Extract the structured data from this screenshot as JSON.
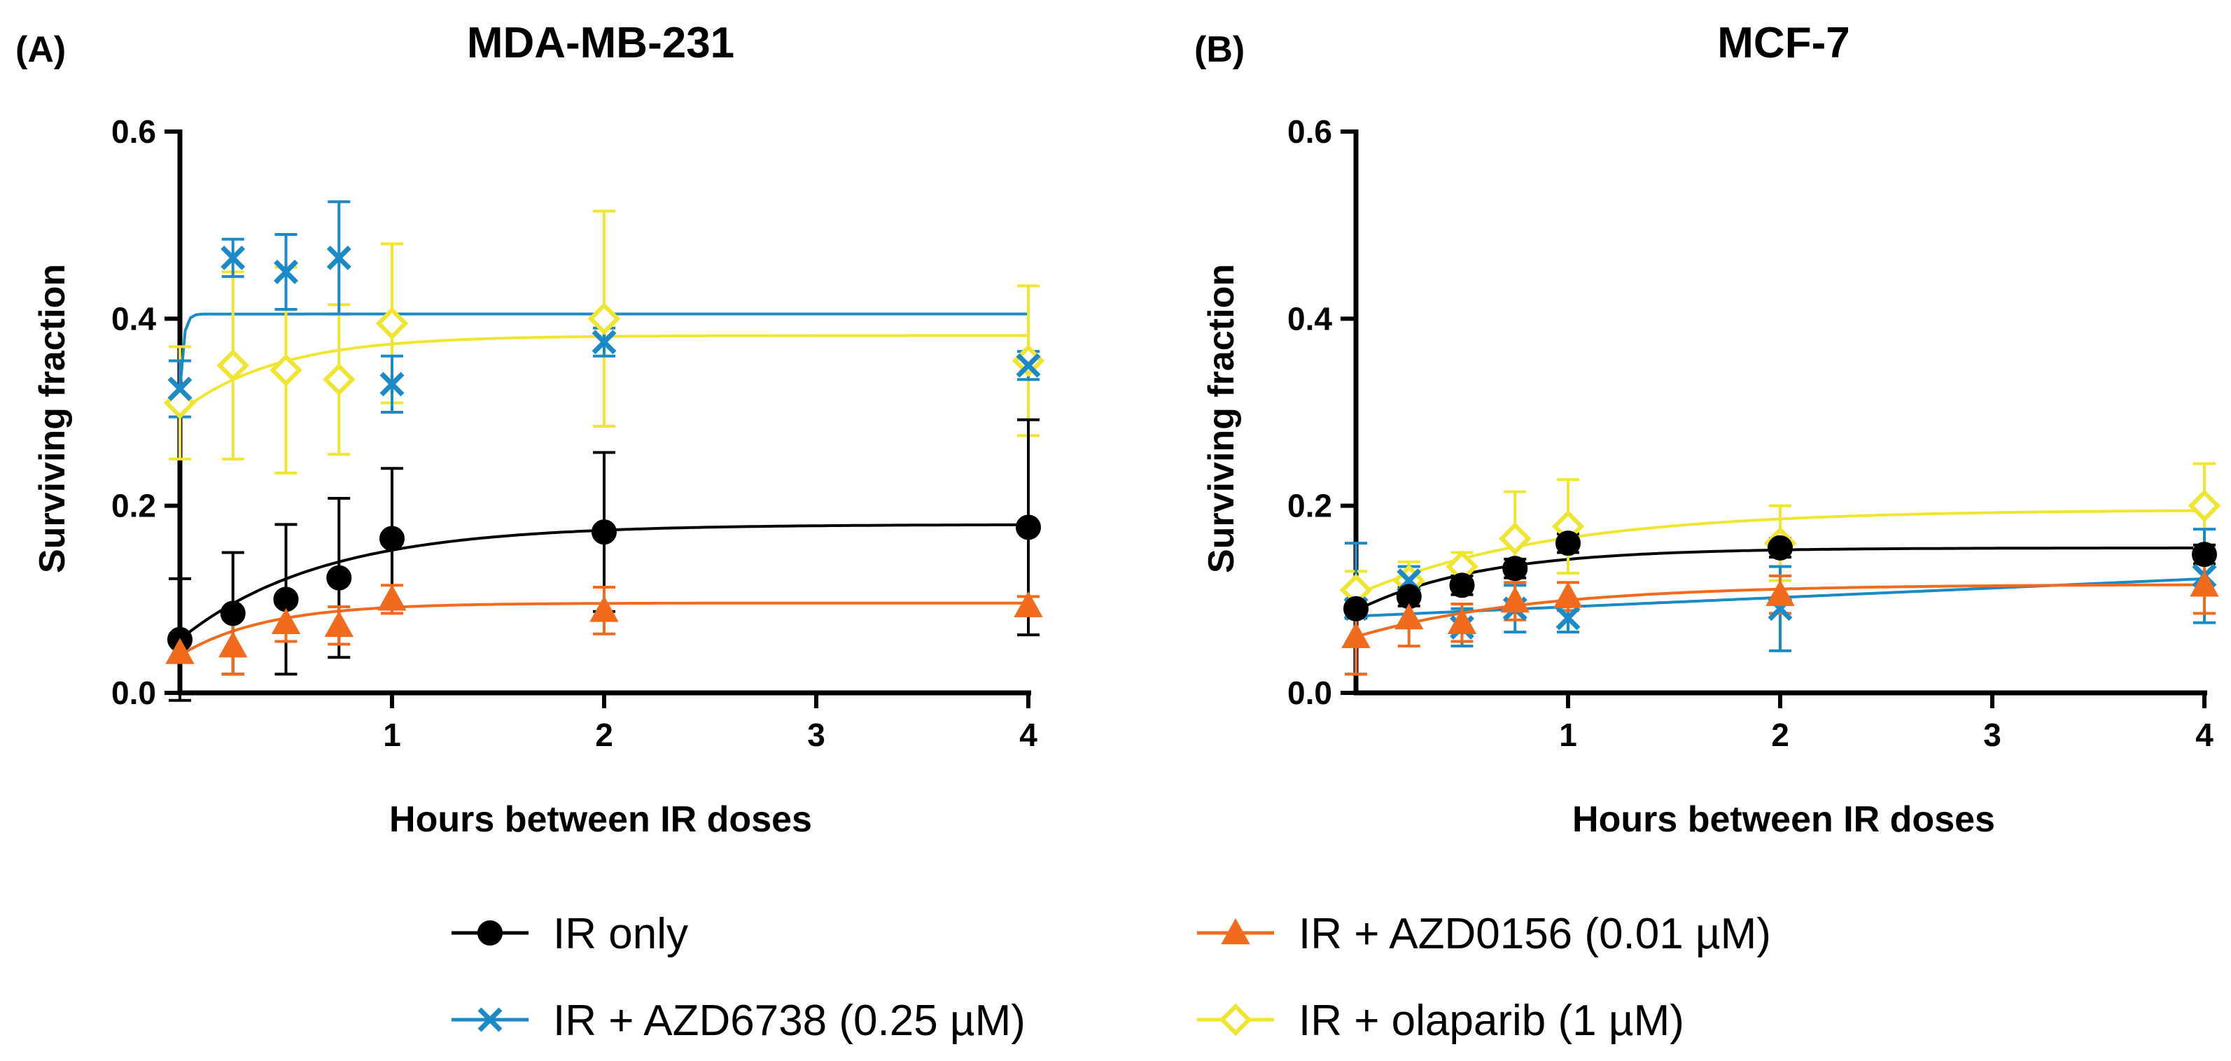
{
  "chart_data": [
    {
      "panel_label": "(A)",
      "title": "MDA-MB-231",
      "type": "scatter",
      "xlabel": "Hours between IR doses",
      "ylabel": "Surviving fraction",
      "ylim": [
        0,
        0.6
      ],
      "xlim": [
        0,
        4
      ],
      "x_tick_labels": [
        {
          "value": 1,
          "label": "1"
        },
        {
          "value": 2,
          "label": "2"
        },
        {
          "value": 3,
          "label": "3"
        },
        {
          "value": 4,
          "label": "4"
        }
      ],
      "y_tick_labels": [
        {
          "value": 0,
          "label": "0.0"
        },
        {
          "value": 0.2,
          "label": "0.2"
        },
        {
          "value": 0.4,
          "label": "0.4"
        },
        {
          "value": 0.6,
          "label": "0.6"
        }
      ],
      "series": [
        {
          "name": "IR + olaparib (1 µM)",
          "color": "#F2E530",
          "marker": "diamond",
          "x": [
            0,
            0.25,
            0.5,
            0.75,
            1,
            2,
            4
          ],
          "y": [
            0.31,
            0.35,
            0.345,
            0.335,
            0.395,
            0.4,
            0.355
          ],
          "err": [
            0.06,
            0.1,
            0.11,
            0.08,
            0.085,
            0.115,
            0.08
          ],
          "fit": {
            "plateau": 0.382,
            "y0": 0.3,
            "k": 2.2
          }
        },
        {
          "name": "IR + AZD6738 (0.25 µM)",
          "color": "#1A8BC6",
          "marker": "x",
          "x": [
            0,
            0.25,
            0.5,
            0.75,
            1,
            2,
            4
          ],
          "y": [
            0.325,
            0.465,
            0.45,
            0.465,
            0.33,
            0.375,
            0.35
          ],
          "err": [
            0.03,
            0.02,
            0.04,
            0.06,
            0.03,
            0.015,
            0.015
          ],
          "fit": {
            "plateau": 0.405,
            "y0": 0.325,
            "k": 60
          }
        },
        {
          "name": "IR only",
          "color": "#000000",
          "marker": "circle",
          "x": [
            0,
            0.25,
            0.5,
            0.75,
            1,
            2,
            4
          ],
          "y": [
            0.057,
            0.085,
            0.1,
            0.123,
            0.165,
            0.172,
            0.177
          ],
          "err": [
            0.065,
            0.065,
            0.08,
            0.085,
            0.075,
            0.085,
            0.115
          ],
          "fit": {
            "plateau": 0.18,
            "y0": 0.057,
            "k": 1.5
          }
        },
        {
          "name": "IR + AZD0156 (0.01 µM)",
          "color": "#F26B1D",
          "marker": "triangle",
          "x": [
            0,
            0.25,
            0.5,
            0.75,
            1,
            2,
            4
          ],
          "y": [
            0.043,
            0.05,
            0.075,
            0.072,
            0.1,
            0.088,
            0.093
          ],
          "err": [
            0.01,
            0.03,
            0.02,
            0.02,
            0.015,
            0.025,
            0.01
          ],
          "fit": {
            "plateau": 0.096,
            "y0": 0.04,
            "k": 2.5
          }
        }
      ]
    },
    {
      "panel_label": "(B)",
      "title": "MCF-7",
      "type": "scatter",
      "xlabel": "Hours between IR doses",
      "ylabel": "Surviving fraction",
      "ylim": [
        0,
        0.6
      ],
      "xlim": [
        0,
        4
      ],
      "x_tick_labels": [
        {
          "value": 1,
          "label": "1"
        },
        {
          "value": 2,
          "label": "2"
        },
        {
          "value": 3,
          "label": "3"
        },
        {
          "value": 4,
          "label": "4"
        }
      ],
      "y_tick_labels": [
        {
          "value": 0,
          "label": "0.0"
        },
        {
          "value": 0.2,
          "label": "0.2"
        },
        {
          "value": 0.4,
          "label": "0.4"
        },
        {
          "value": 0.6,
          "label": "0.6"
        }
      ],
      "series": [
        {
          "name": "IR + olaparib (1 µM)",
          "color": "#F2E530",
          "marker": "diamond",
          "x": [
            0,
            0.25,
            0.5,
            0.75,
            1,
            2,
            4
          ],
          "y": [
            0.11,
            0.12,
            0.135,
            0.165,
            0.178,
            0.16,
            0.2
          ],
          "err": [
            0.02,
            0.02,
            0.015,
            0.05,
            0.05,
            0.04,
            0.045
          ],
          "fit": {
            "plateau": 0.196,
            "y0": 0.105,
            "k": 1.1
          }
        },
        {
          "name": "IR + AZD6738 (0.25 µM)",
          "color": "#1A8BC6",
          "marker": "x",
          "x": [
            0,
            0.25,
            0.5,
            0.75,
            1,
            2,
            4
          ],
          "y": [
            0.09,
            0.12,
            0.07,
            0.09,
            0.08,
            0.09,
            0.125
          ],
          "err": [
            0.07,
            0.015,
            0.02,
            0.025,
            0.015,
            0.045,
            0.05
          ],
          "fit": {
            "linear": true,
            "y0": 0.082,
            "slope": 0.01
          }
        },
        {
          "name": "IR only",
          "color": "#000000",
          "marker": "circle",
          "x": [
            0,
            0.25,
            0.5,
            0.75,
            1,
            2,
            4
          ],
          "y": [
            0.09,
            0.103,
            0.115,
            0.133,
            0.16,
            0.155,
            0.148
          ],
          "err": [
            0.01,
            0.01,
            0.01,
            0.01,
            0.01,
            0.01,
            0.01
          ],
          "fit": {
            "plateau": 0.155,
            "y0": 0.088,
            "k": 1.7
          }
        },
        {
          "name": "IR + AZD0156 (0.01 µM)",
          "color": "#F26B1D",
          "marker": "triangle",
          "x": [
            0,
            0.25,
            0.5,
            0.75,
            1,
            2,
            4
          ],
          "y": [
            0.06,
            0.08,
            0.075,
            0.098,
            0.103,
            0.105,
            0.115
          ],
          "err": [
            0.04,
            0.03,
            0.02,
            0.02,
            0.015,
            0.02,
            0.03
          ],
          "fit": {
            "plateau": 0.116,
            "y0": 0.06,
            "k": 1.2
          }
        }
      ]
    }
  ],
  "legend": {
    "entries": [
      {
        "label": "IR only",
        "color": "#000000",
        "marker": "circle"
      },
      {
        "label": "IR + AZD0156 (0.01 µM)",
        "color": "#F26B1D",
        "marker": "triangle"
      },
      {
        "label": "IR + AZD6738 (0.25 µM)",
        "color": "#1A8BC6",
        "marker": "x"
      },
      {
        "label": "IR + olaparib (1 µM)",
        "color": "#F2E530",
        "marker": "diamond"
      }
    ]
  }
}
